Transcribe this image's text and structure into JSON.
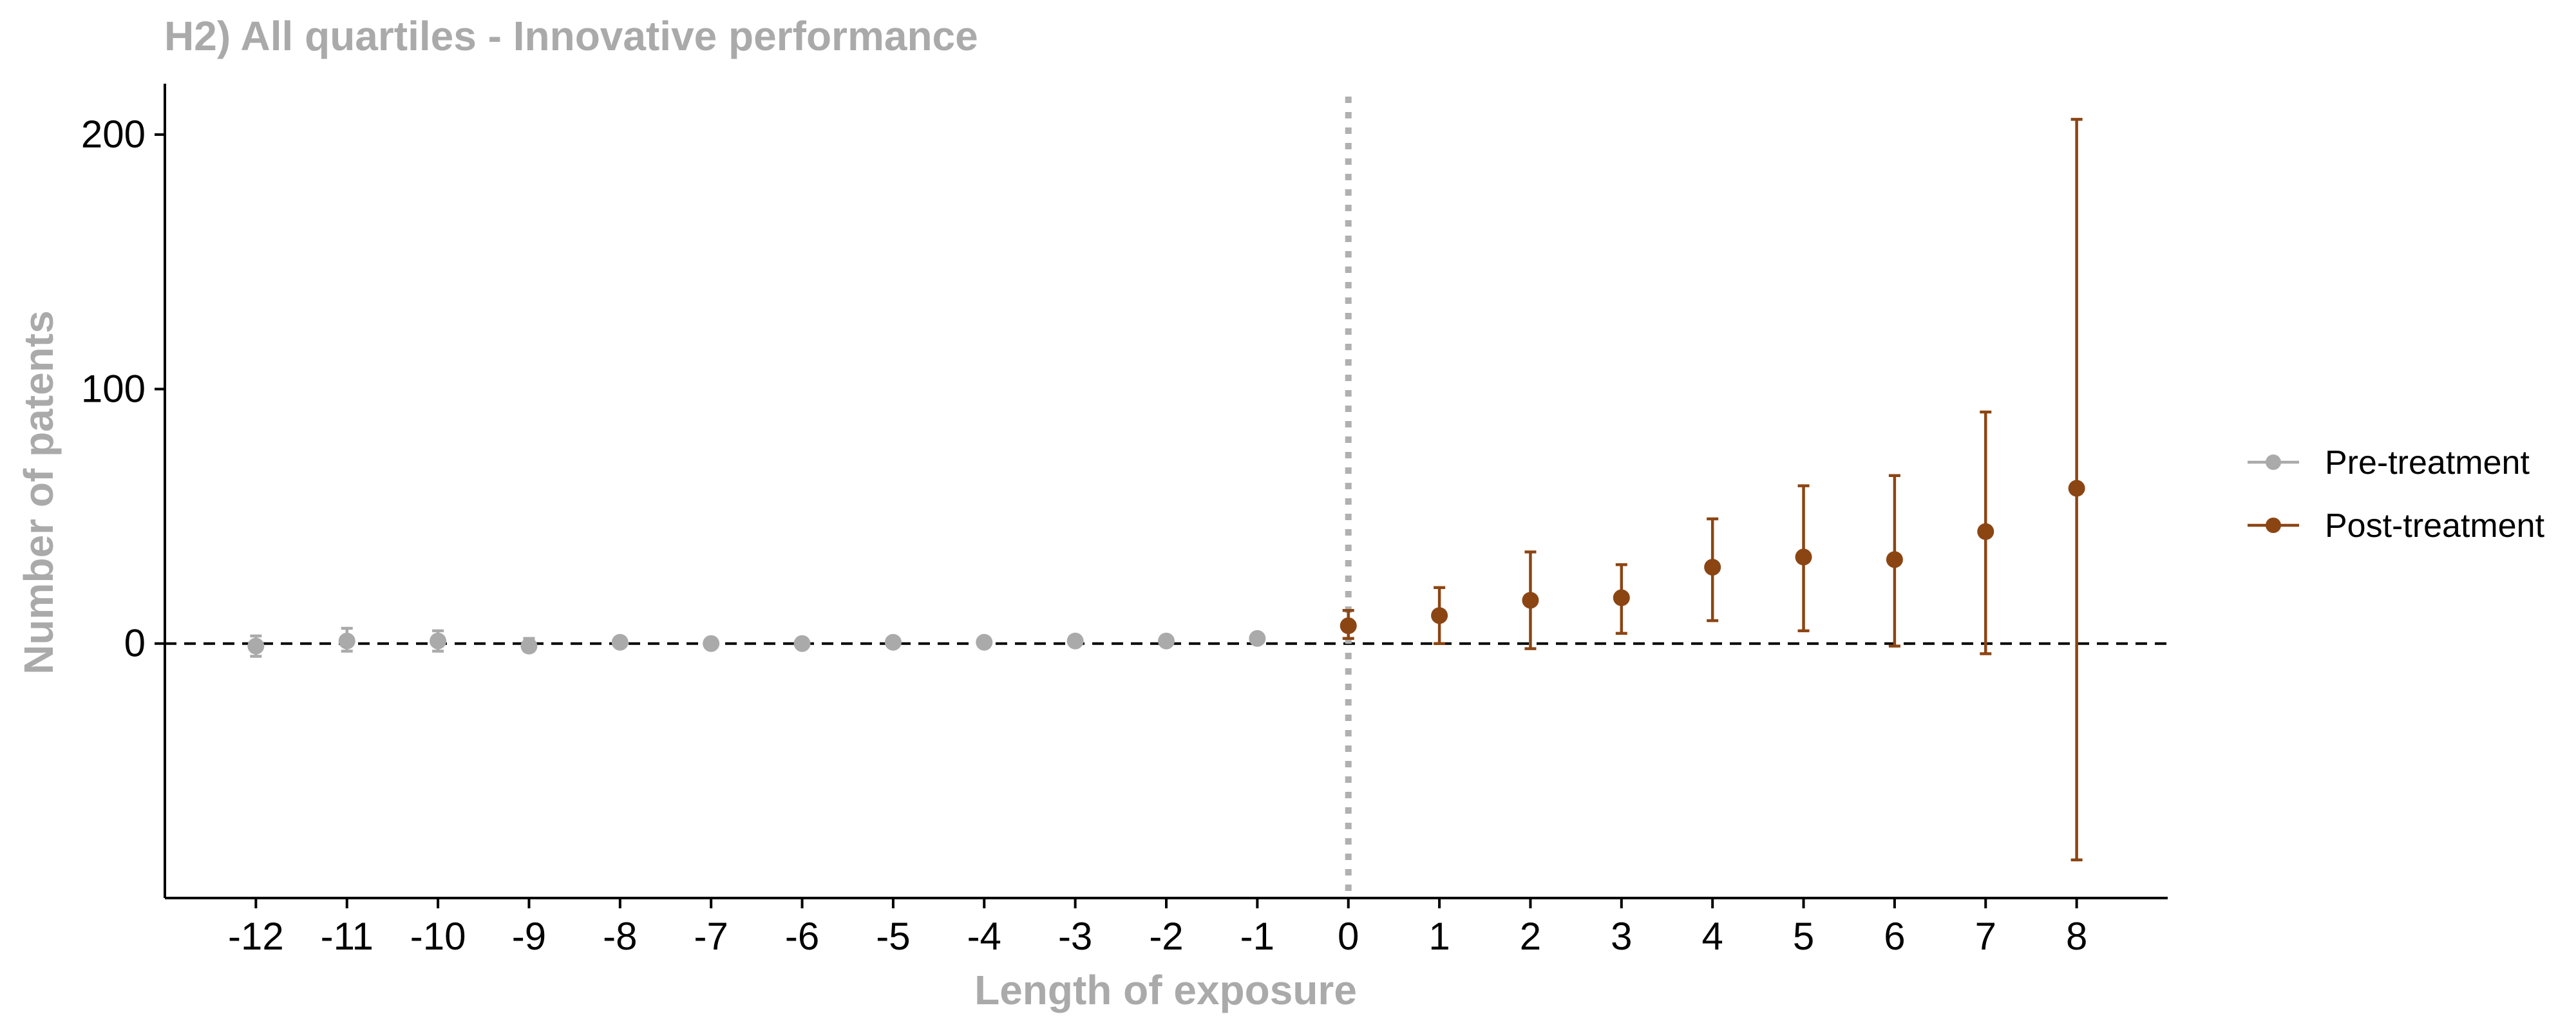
{
  "chart_data": {
    "type": "scatter",
    "title": "H2) All quartiles - Innovative performance",
    "xlabel": "Length of exposure",
    "ylabel": "Number of patents",
    "xlim": [
      -13,
      9
    ],
    "ylim": [
      -100,
      220
    ],
    "x_ticks": [
      -12,
      -11,
      -10,
      -9,
      -8,
      -7,
      -6,
      -5,
      -4,
      -3,
      -2,
      -1,
      0,
      1,
      2,
      3,
      4,
      5,
      6,
      7,
      8
    ],
    "y_ticks": [
      0,
      100,
      200
    ],
    "reference_lines": {
      "horizontal_y": 0,
      "vertical_x": 0
    },
    "grid": false,
    "legend_position": "right",
    "series": [
      {
        "name": "Pre-treatment",
        "color": "#aaaaaa",
        "points": [
          {
            "x": -12,
            "y": -1,
            "lo": -5,
            "hi": 3
          },
          {
            "x": -11,
            "y": 1,
            "lo": -3,
            "hi": 6
          },
          {
            "x": -10,
            "y": 1,
            "lo": -3,
            "hi": 5
          },
          {
            "x": -9,
            "y": -1,
            "lo": -3,
            "hi": 2
          },
          {
            "x": -8,
            "y": 0.5,
            "lo": -1,
            "hi": 2
          },
          {
            "x": -7,
            "y": 0,
            "lo": -1,
            "hi": 1
          },
          {
            "x": -6,
            "y": 0,
            "lo": -1,
            "hi": 1
          },
          {
            "x": -5,
            "y": 0.5,
            "lo": -0.5,
            "hi": 1.5
          },
          {
            "x": -4,
            "y": 0.5,
            "lo": -0.5,
            "hi": 1.5
          },
          {
            "x": -3,
            "y": 1,
            "lo": 0,
            "hi": 2
          },
          {
            "x": -2,
            "y": 1,
            "lo": 0,
            "hi": 2
          },
          {
            "x": -1,
            "y": 2,
            "lo": 1,
            "hi": 3
          }
        ]
      },
      {
        "name": "Post-treatment",
        "color": "#8b4513",
        "points": [
          {
            "x": 0,
            "y": 7,
            "lo": 2,
            "hi": 13
          },
          {
            "x": 1,
            "y": 11,
            "lo": 0,
            "hi": 22
          },
          {
            "x": 2,
            "y": 17,
            "lo": -2,
            "hi": 36
          },
          {
            "x": 3,
            "y": 18,
            "lo": 4,
            "hi": 31
          },
          {
            "x": 4,
            "y": 30,
            "lo": 9,
            "hi": 49
          },
          {
            "x": 5,
            "y": 34,
            "lo": 5,
            "hi": 62
          },
          {
            "x": 6,
            "y": 33,
            "lo": -1,
            "hi": 66
          },
          {
            "x": 7,
            "y": 44,
            "lo": -4,
            "hi": 91
          },
          {
            "x": 8,
            "y": 61,
            "lo": -85,
            "hi": 206
          }
        ]
      }
    ]
  }
}
